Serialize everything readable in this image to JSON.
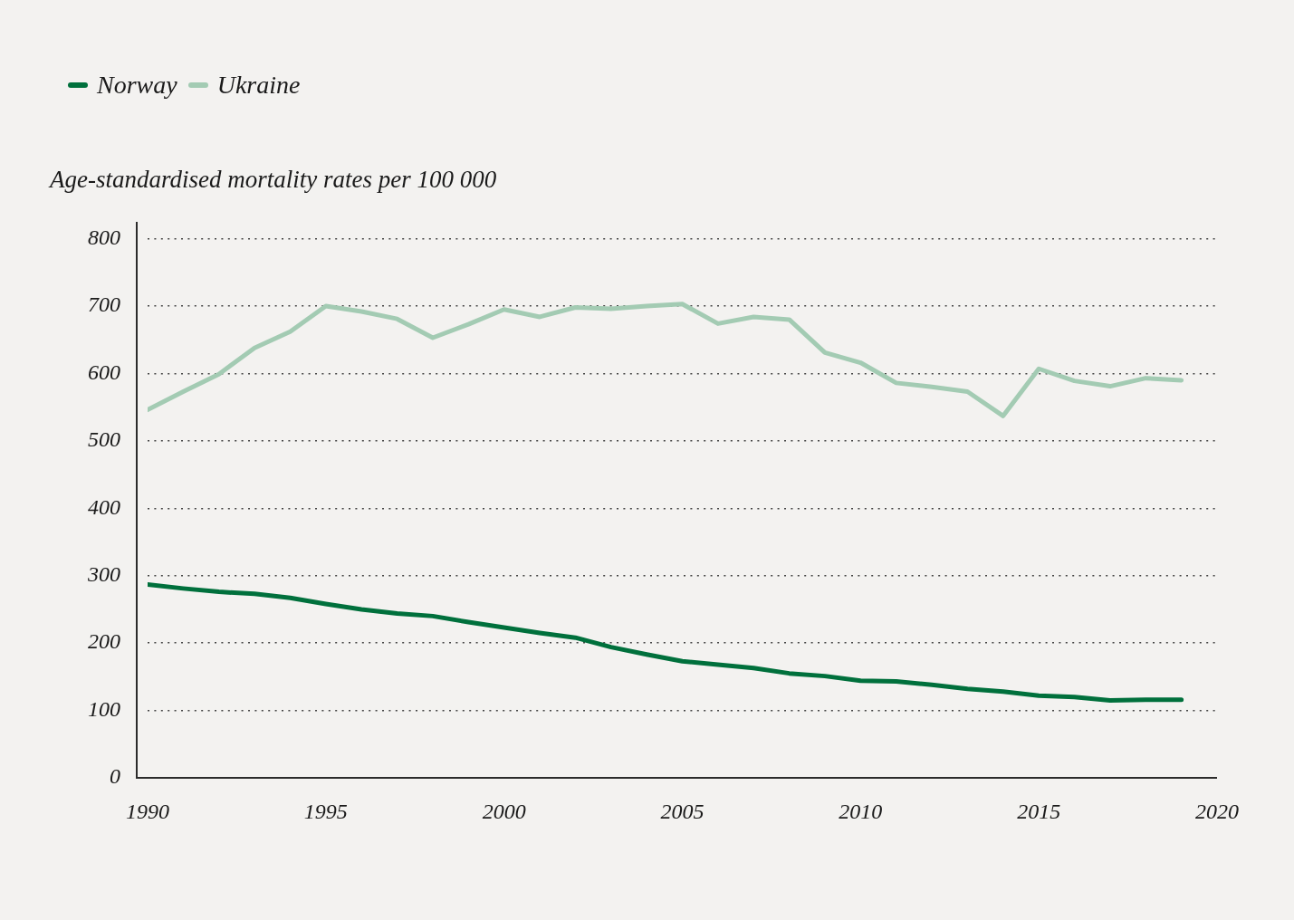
{
  "chart_data": {
    "type": "line",
    "ylabel": "Age-standardised mortality rates per 100 000",
    "x": [
      1990,
      1991,
      1992,
      1993,
      1994,
      1995,
      1996,
      1997,
      1998,
      1999,
      2000,
      2001,
      2002,
      2003,
      2004,
      2005,
      2006,
      2007,
      2008,
      2009,
      2010,
      2011,
      2012,
      2013,
      2014,
      2015,
      2016,
      2017,
      2018,
      2019
    ],
    "series": [
      {
        "name": "Norway",
        "color": "#00703c",
        "values": [
          287,
          281,
          276,
          273,
          267,
          258,
          250,
          244,
          240,
          231,
          223,
          215,
          208,
          194,
          183,
          173,
          168,
          163,
          155,
          151,
          144,
          143,
          138,
          132,
          128,
          122,
          120,
          115,
          116,
          116
        ]
      },
      {
        "name": "Ukraine",
        "color": "#a3cbb3",
        "values": [
          546,
          573,
          599,
          638,
          662,
          700,
          692,
          681,
          653,
          673,
          695,
          684,
          698,
          696,
          700,
          703,
          674,
          684,
          680,
          631,
          616,
          586,
          580,
          573,
          537,
          607,
          589,
          581,
          593,
          590
        ]
      }
    ],
    "xlim": [
      1990,
      2020
    ],
    "xticks": [
      1990,
      1995,
      2000,
      2005,
      2010,
      2015,
      2020
    ],
    "ylim": [
      0,
      825
    ],
    "yticks": [
      0,
      100,
      200,
      300,
      400,
      500,
      600,
      700,
      800
    ],
    "grid": "y",
    "legend": "top left",
    "marker": "none",
    "line_style": "solid"
  }
}
